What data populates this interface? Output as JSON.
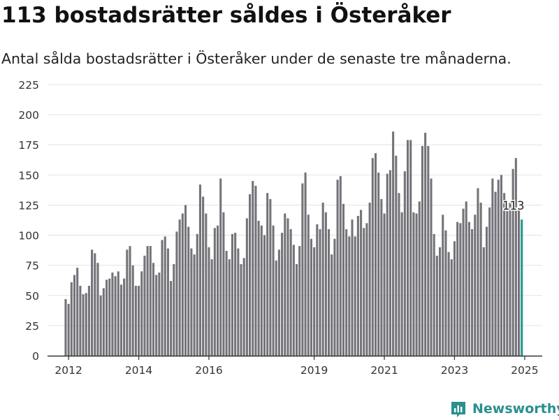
{
  "headline": "113 bostadsrätter såldes i Österåker",
  "subtitle": "Antal sålda bostadsrätter i Österåker under de senaste tre månaderna.",
  "brand": {
    "name": "Newsworthy",
    "icon": "newsworthy-logo-icon"
  },
  "colors": {
    "bar": "#747379",
    "highlight": "#1f9b8c",
    "grid": "#e3e3e3",
    "axis": "#333333"
  },
  "chart_data": {
    "type": "bar",
    "title": "",
    "xlabel": "",
    "ylabel": "",
    "ylim": [
      0,
      225
    ],
    "yticks": [
      0,
      25,
      50,
      75,
      100,
      125,
      150,
      175,
      200,
      225
    ],
    "xticks": [
      {
        "label": "2012",
        "value": 2012.0
      },
      {
        "label": "2014",
        "value": 2014.0
      },
      {
        "label": "2016",
        "value": 2016.0
      },
      {
        "label": "2019",
        "value": 2019.0
      },
      {
        "label": "2021",
        "value": 2021.0
      },
      {
        "label": "2023",
        "value": 2023.0
      },
      {
        "label": "2025",
        "value": 2025.0
      }
    ],
    "grid": true,
    "series": [
      {
        "x_start": 2011.917,
        "x_step": 0.0833333,
        "values": [
          47,
          43,
          61,
          67,
          73,
          58,
          51,
          52,
          58,
          88,
          85,
          77,
          50,
          56,
          63,
          64,
          69,
          66,
          70,
          59,
          64,
          88,
          91,
          75,
          58,
          58,
          70,
          83,
          91,
          91,
          77,
          67,
          69,
          96,
          99,
          89,
          62,
          76,
          103,
          113,
          118,
          125,
          107,
          89,
          84,
          101,
          142,
          132,
          118,
          90,
          80,
          106,
          108,
          147,
          119,
          87,
          80,
          101,
          102,
          89,
          76,
          81,
          114,
          134,
          145,
          141,
          112,
          108,
          100,
          135,
          130,
          108,
          79,
          88,
          102,
          118,
          114,
          105,
          92,
          76,
          91,
          143,
          152,
          117,
          97,
          90,
          109,
          105,
          127,
          119,
          105,
          84,
          97,
          146,
          149,
          126,
          105,
          99,
          113,
          99,
          116,
          121,
          106,
          110,
          127,
          164,
          168,
          152,
          130,
          118,
          151,
          154,
          186,
          166,
          135,
          119,
          153,
          179,
          179,
          119,
          118,
          128,
          174,
          185,
          174,
          147,
          101,
          83,
          90,
          117,
          104,
          86,
          80,
          95,
          111,
          110,
          122,
          128,
          111,
          105,
          117,
          139,
          127,
          90,
          107,
          123,
          147,
          136,
          146,
          150,
          135,
          120,
          127,
          155,
          164,
          122,
          113
        ]
      }
    ],
    "annotations": [
      {
        "text": "113"
      }
    ]
  }
}
